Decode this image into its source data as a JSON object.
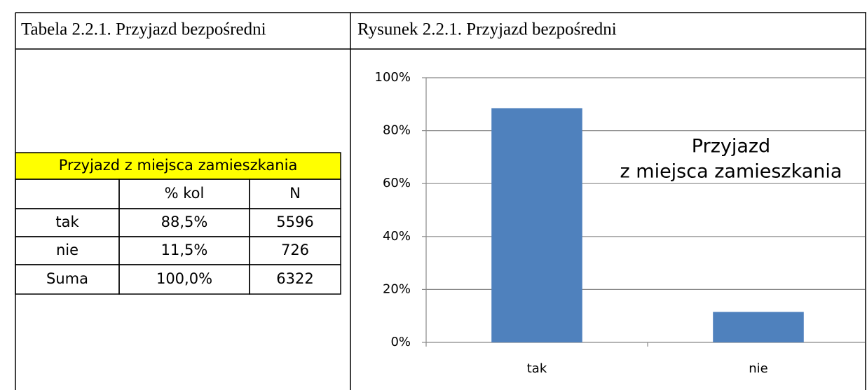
{
  "header": {
    "left": "Tabela 2.2.1. Przyjazd bezpośredni",
    "right": "Rysunek 2.2.1. Przyjazd bezpośredni"
  },
  "table": {
    "title": "Przyjazd z miejsca zamieszkania",
    "columns": [
      "% kol",
      "N"
    ],
    "rows": [
      [
        "tak",
        "88,5%",
        "5596"
      ],
      [
        "nie",
        "11,5%",
        "726"
      ],
      [
        "Suma",
        "100,0%",
        "6322"
      ]
    ]
  },
  "chart_data": {
    "type": "bar",
    "title": [
      "Przyjazd",
      "z miejsca zamieszkania"
    ],
    "categories": [
      "tak",
      "nie"
    ],
    "values": [
      88.5,
      11.5
    ],
    "color": "#4f81bd",
    "ylim": [
      0,
      100
    ],
    "yticks": [
      {
        "value": 0,
        "label": "0%"
      },
      {
        "value": 20,
        "label": "20%"
      },
      {
        "value": 40,
        "label": "40%"
      },
      {
        "value": 60,
        "label": "60%"
      },
      {
        "value": 80,
        "label": "80%"
      },
      {
        "value": 100,
        "label": "100%"
      }
    ],
    "grid": true
  }
}
